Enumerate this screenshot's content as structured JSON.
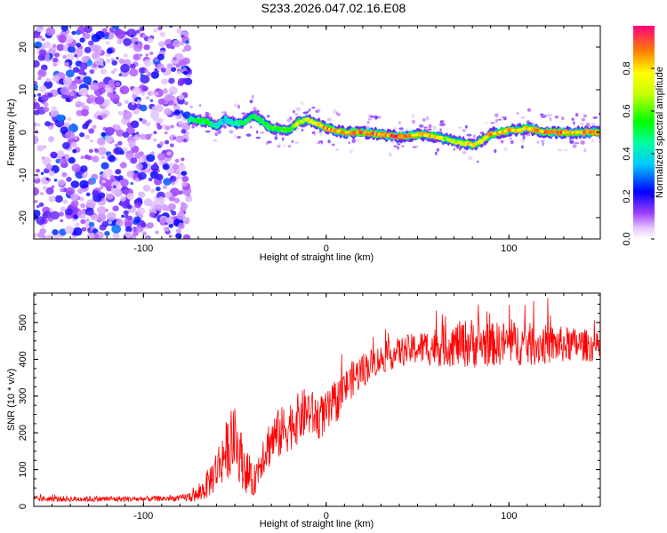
{
  "figure": {
    "title": "S233.2026.047.02.16.E08"
  },
  "chart_data": [
    {
      "type": "heatmap",
      "title": "S233.2026.047.02.16.E08",
      "xlabel": "Height of straight line (km)",
      "ylabel": "Frequency (Hz)",
      "xlim": [
        -160,
        150
      ],
      "ylim": [
        -25,
        25
      ],
      "xticks": [
        -100,
        0,
        100
      ],
      "yticks": [
        -20,
        -10,
        0,
        10,
        20
      ],
      "grid": false,
      "colorbar": {
        "label": "Normalized spectral amplitude",
        "range": [
          0,
          1
        ],
        "ticks": [
          0.0,
          0.2,
          0.4,
          0.6,
          0.8
        ]
      },
      "noise_region_x": [
        -160,
        -75
      ],
      "ridge": {
        "x": [
          -75,
          -65,
          -60,
          -55,
          -50,
          -45,
          -40,
          -30,
          -20,
          -15,
          -10,
          -5,
          0,
          10,
          20,
          30,
          40,
          50,
          60,
          65,
          70,
          75,
          80,
          85,
          90,
          95,
          100,
          105,
          110,
          115,
          120,
          125,
          130,
          135,
          140,
          145,
          150
        ],
        "y": [
          3,
          2.5,
          1.5,
          3,
          2,
          2.5,
          4,
          1,
          0.5,
          2.5,
          3,
          2,
          1,
          0,
          0,
          -0.5,
          -1,
          -0.5,
          -1,
          -1.5,
          -2,
          -2.5,
          -3,
          -2,
          -0.5,
          0,
          0.5,
          0.5,
          1,
          0.5,
          0,
          0,
          0,
          0,
          0,
          0,
          0
        ],
        "amplitude": [
          0.5,
          0.55,
          0.45,
          0.4,
          0.45,
          0.55,
          0.5,
          0.6,
          0.65,
          0.75,
          0.8,
          0.8,
          0.9,
          0.95,
          1.0,
          0.95,
          1.0,
          0.9,
          0.85,
          0.7,
          0.75,
          0.7,
          0.9,
          0.8,
          0.9,
          0.9,
          0.9,
          0.85,
          0.85,
          0.9,
          1.0,
          1.0,
          0.95,
          0.9,
          0.9,
          0.9,
          0.9
        ]
      }
    },
    {
      "type": "line",
      "xlabel": "Height of straight line (km)",
      "ylabel": "SNR (10 * v/v)",
      "xlim": [
        -160,
        150
      ],
      "ylim": [
        0,
        580
      ],
      "xticks": [
        -100,
        0,
        100
      ],
      "yticks": [
        0,
        100,
        200,
        300,
        400,
        500
      ],
      "grid": false,
      "series": [
        {
          "name": "SNR",
          "color": "#ff0000",
          "x": [
            -160,
            -140,
            -120,
            -100,
            -80,
            -70,
            -65,
            -60,
            -55,
            -50,
            -45,
            -40,
            -35,
            -30,
            -25,
            -20,
            -15,
            -10,
            -5,
            0,
            5,
            10,
            15,
            20,
            25,
            30,
            35,
            40,
            50,
            60,
            70,
            80,
            90,
            100,
            110,
            120,
            130,
            140,
            150
          ],
          "y": [
            20,
            20,
            20,
            20,
            22,
            30,
            60,
            100,
            150,
            180,
            110,
            60,
            140,
            180,
            200,
            220,
            240,
            260,
            240,
            250,
            280,
            320,
            350,
            370,
            390,
            400,
            410,
            420,
            430,
            435,
            440,
            445,
            440,
            445,
            440,
            440,
            440,
            440,
            430
          ],
          "noise_amplitude": [
            8,
            8,
            8,
            8,
            8,
            20,
            40,
            60,
            80,
            90,
            70,
            40,
            60,
            70,
            70,
            70,
            70,
            70,
            60,
            60,
            60,
            50,
            50,
            50,
            40,
            40,
            40,
            40,
            45,
            55,
            60,
            70,
            60,
            60,
            60,
            55,
            50,
            45,
            40
          ],
          "max_value": 580
        }
      ]
    }
  ]
}
